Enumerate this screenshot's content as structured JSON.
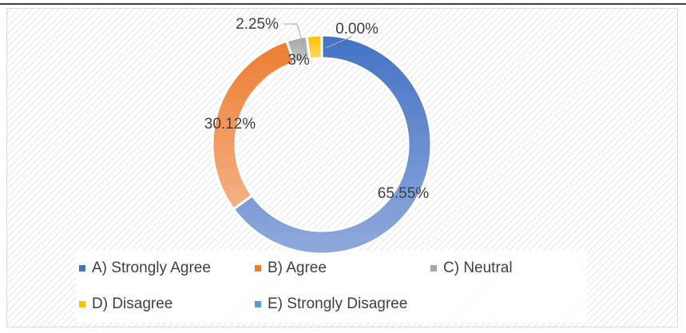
{
  "chart_data": {
    "type": "pie",
    "donut": true,
    "categories": [
      "A) Strongly Agree",
      "B) Agree",
      "C) Neutral",
      "D) Disagree",
      "E) Strongly Disagree"
    ],
    "values": [
      65.55,
      30.12,
      3,
      2.25,
      0
    ],
    "value_labels": [
      "65.55%",
      "30.12%",
      "3%",
      "2.25%",
      "0.00%"
    ],
    "colors": [
      "#4472c4",
      "#ed7d31",
      "#a5a5a5",
      "#ffc000",
      "#5b9bd5"
    ],
    "legend": "bottom"
  }
}
